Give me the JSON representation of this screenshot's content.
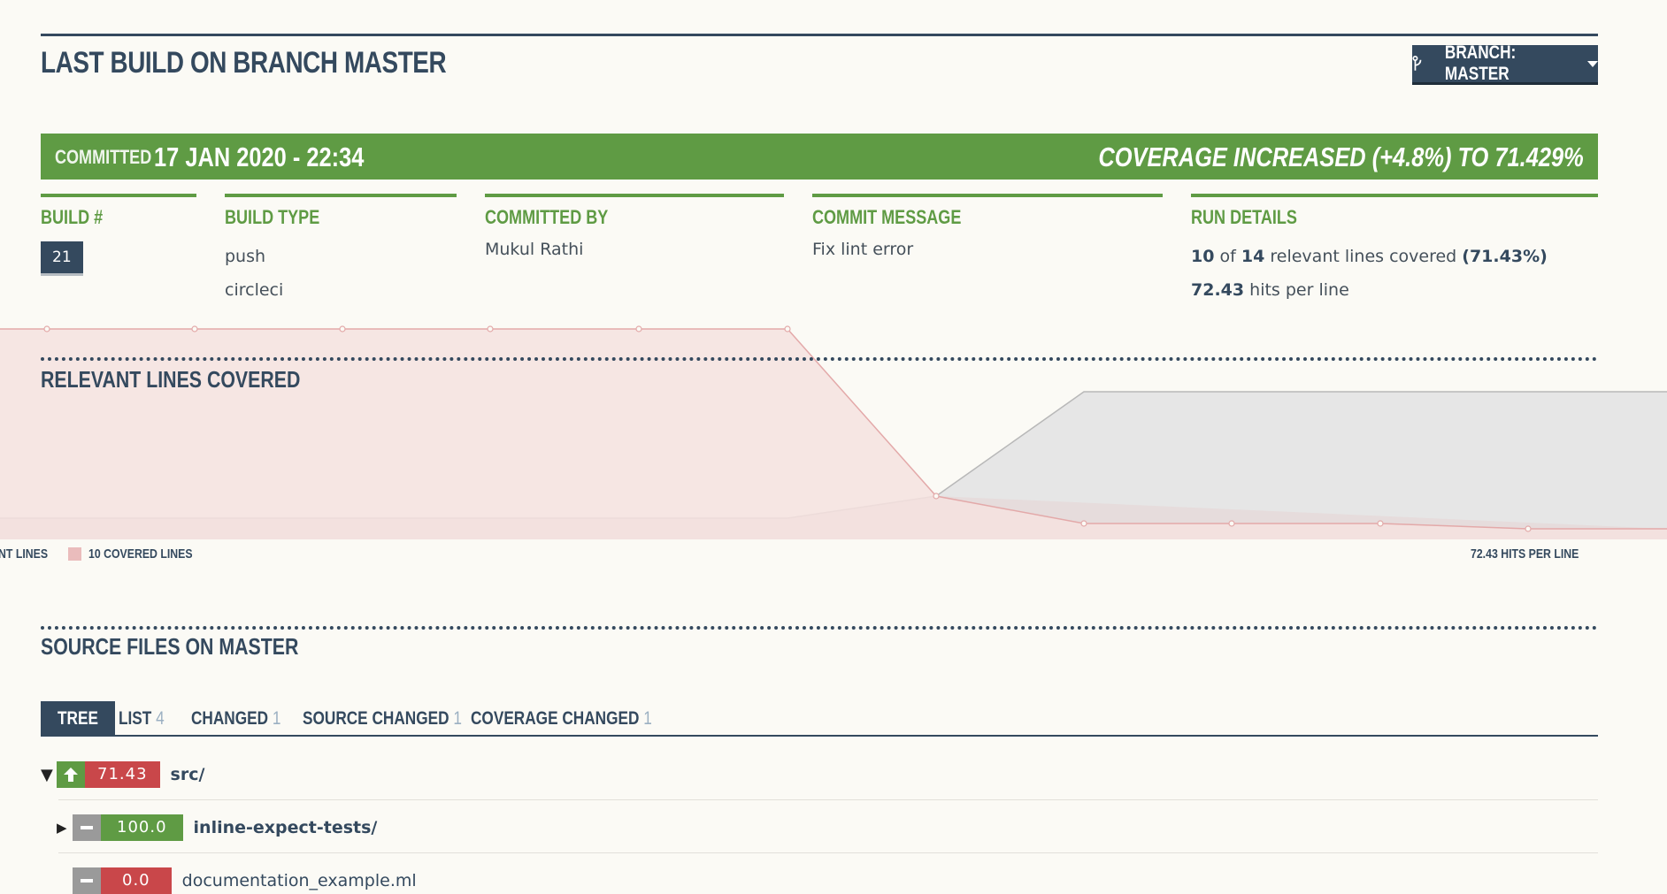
{
  "header": {
    "title": "LAST BUILD ON BRANCH MASTER",
    "branch_button": "BRANCH: MASTER"
  },
  "status_bar": {
    "committed_label": "COMMITTED",
    "datetime": "17 JAN 2020 - 22:34",
    "coverage": "COVERAGE INCREASED (+4.8%) TO 71.429%",
    "color": "#5f9b44"
  },
  "info": {
    "build": {
      "label": "BUILD #",
      "value": "21"
    },
    "build_type": {
      "label": "BUILD TYPE",
      "values": [
        "push",
        "circleci"
      ]
    },
    "committed_by": {
      "label": "COMMITTED BY",
      "value": "Mukul Rathi"
    },
    "commit_message": {
      "label": "COMMIT MESSAGE",
      "value": "Fix lint error"
    },
    "run_details": {
      "label": "RUN DETAILS",
      "covered": "10",
      "of": "of",
      "total": "14",
      "relevant_text": "relevant lines covered",
      "pct": "(71.43%)",
      "hits": "72.43",
      "hits_text": "hits per line"
    }
  },
  "chart": {
    "title": "RELEVANT LINES COVERED",
    "legend_left": "NT LINES",
    "legend_covered": "10 COVERED LINES",
    "legend_hits": "72.43 HITS PER LINE",
    "covered_color": "#eabcbc",
    "hits_color": "#e6e6e6"
  },
  "source": {
    "title": "SOURCE FILES ON MASTER",
    "tabs": [
      {
        "label": "TREE",
        "count": ""
      },
      {
        "label": "LIST",
        "count": "4"
      },
      {
        "label": "CHANGED",
        "count": "1"
      },
      {
        "label": "SOURCE CHANGED",
        "count": "1"
      },
      {
        "label": "COVERAGE CHANGED",
        "count": "1"
      }
    ],
    "tree": [
      {
        "name": "src/",
        "coverage": "71.43",
        "change": "up",
        "pct_color": "#c9474a",
        "chg_color": "#5f9b44"
      },
      {
        "name": "inline-expect-tests/",
        "coverage": "100.0",
        "change": "none",
        "pct_color": "#5f9b44",
        "chg_color": "#9a9a9a"
      },
      {
        "name": "documentation_example.ml",
        "coverage": "0.0",
        "change": "none",
        "pct_color": "#c9474a",
        "chg_color": "#9a9a9a"
      }
    ]
  }
}
